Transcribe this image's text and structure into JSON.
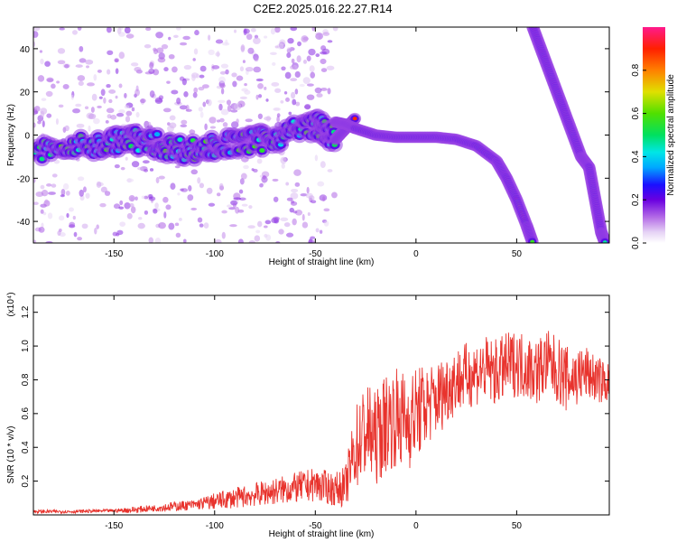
{
  "title": "C2E2.2025.016.22.27.R14",
  "chart_data": [
    {
      "type": "heatmap",
      "xlabel": "Height of straight line (km)",
      "ylabel": "Frequency (Hz)",
      "xlim": [
        -190,
        96
      ],
      "ylim": [
        -50,
        50
      ],
      "x_ticks": [
        -150,
        -100,
        -50,
        0,
        50
      ],
      "y_ticks": [
        -40,
        -20,
        0,
        20,
        40
      ],
      "colorbar": {
        "label": "Normalized spectral amplitude",
        "range": [
          0,
          1
        ],
        "ticks": [
          "0.0",
          "0.2",
          "0.4",
          "0.6",
          "0.8"
        ],
        "tick_values": [
          0,
          0.2,
          0.4,
          0.6,
          0.8
        ]
      },
      "ridges": [
        {
          "x": [
            -190,
            -175,
            -160,
            -150,
            -140,
            -130,
            -120,
            -110,
            -100,
            -90,
            -80,
            -70,
            -60,
            -50,
            -45,
            -40,
            -35,
            -30
          ],
          "y": [
            -8,
            -6,
            -5,
            -3,
            -2,
            -4,
            -6,
            -7,
            -5,
            -4,
            -3,
            -1,
            2,
            5,
            2,
            -2,
            3,
            8
          ]
        },
        {
          "x": [
            -40,
            -35,
            -30,
            -20,
            -10,
            0,
            10,
            20,
            30,
            40,
            45,
            50,
            55,
            58
          ],
          "y": [
            6,
            5,
            3,
            0,
            -1,
            -1,
            -1,
            -2,
            -5,
            -12,
            -20,
            -30,
            -42,
            -50
          ]
        },
        {
          "x": [
            58,
            62,
            66,
            70,
            74,
            78,
            82,
            86,
            88,
            90,
            92,
            94
          ],
          "y": [
            50,
            40,
            30,
            20,
            10,
            0,
            -10,
            -15,
            -25,
            -35,
            -45,
            -50
          ]
        }
      ]
    },
    {
      "type": "line",
      "xlabel": "Height of straight line (km)",
      "ylabel": "SNR (10 * v/v)",
      "y_multiplier": "(x10⁴)",
      "xlim": [
        -190,
        96
      ],
      "ylim": [
        0,
        1.3
      ],
      "x_ticks": [
        -150,
        -100,
        -50,
        0,
        50
      ],
      "y_ticks": [
        "0.2",
        "0.4",
        "0.6",
        "0.8",
        "1.0",
        "1.2"
      ],
      "y_tick_values": [
        0.2,
        0.4,
        0.6,
        0.8,
        1.0,
        1.2
      ],
      "color": "#e8332d",
      "series": [
        {
          "x": [
            -190,
            -170,
            -150,
            -140,
            -130,
            -120,
            -110,
            -100,
            -90,
            -80,
            -70,
            -60,
            -50,
            -40,
            -35,
            -30,
            -25,
            -20,
            -15,
            -10,
            -5,
            0,
            5,
            10,
            15,
            20,
            25,
            30,
            35,
            40,
            45,
            50,
            55,
            60,
            65,
            70,
            75,
            80,
            85,
            90,
            96
          ],
          "y": [
            0.02,
            0.02,
            0.025,
            0.03,
            0.04,
            0.05,
            0.06,
            0.08,
            0.1,
            0.12,
            0.14,
            0.16,
            0.18,
            0.15,
            0.17,
            0.4,
            0.5,
            0.45,
            0.55,
            0.58,
            0.55,
            0.6,
            0.65,
            0.68,
            0.75,
            0.8,
            0.82,
            0.85,
            0.86,
            0.84,
            0.88,
            0.9,
            0.88,
            0.85,
            0.9,
            0.86,
            0.8,
            0.82,
            0.84,
            0.8,
            0.78
          ],
          "spread": [
            0.01,
            0.01,
            0.01,
            0.02,
            0.02,
            0.03,
            0.03,
            0.05,
            0.06,
            0.07,
            0.08,
            0.09,
            0.1,
            0.1,
            0.12,
            0.25,
            0.3,
            0.28,
            0.3,
            0.3,
            0.3,
            0.28,
            0.25,
            0.22,
            0.22,
            0.2,
            0.2,
            0.2,
            0.2,
            0.2,
            0.2,
            0.2,
            0.2,
            0.2,
            0.2,
            0.2,
            0.2,
            0.18,
            0.16,
            0.14,
            0.12
          ]
        }
      ]
    }
  ]
}
